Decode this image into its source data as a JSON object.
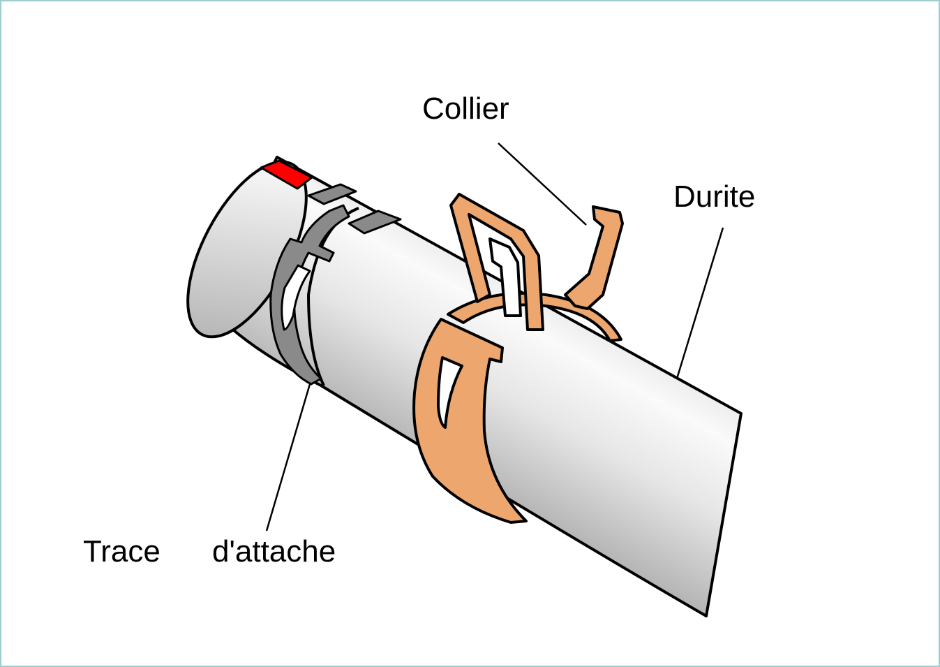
{
  "diagram": {
    "labels": {
      "collier": "Collier",
      "durite": "Durite",
      "trace": "Trace",
      "attache": "d'attache"
    },
    "colors": {
      "border": "#9ecdd0",
      "hose_light": "#f6f6f6",
      "hose_mid": "#d9d9d9",
      "hose_dark": "#a8a8a8",
      "clamp": "#eda66e",
      "mark": "#ff0000",
      "trace_mark": "#8a8a8a",
      "outline": "#000000"
    }
  }
}
